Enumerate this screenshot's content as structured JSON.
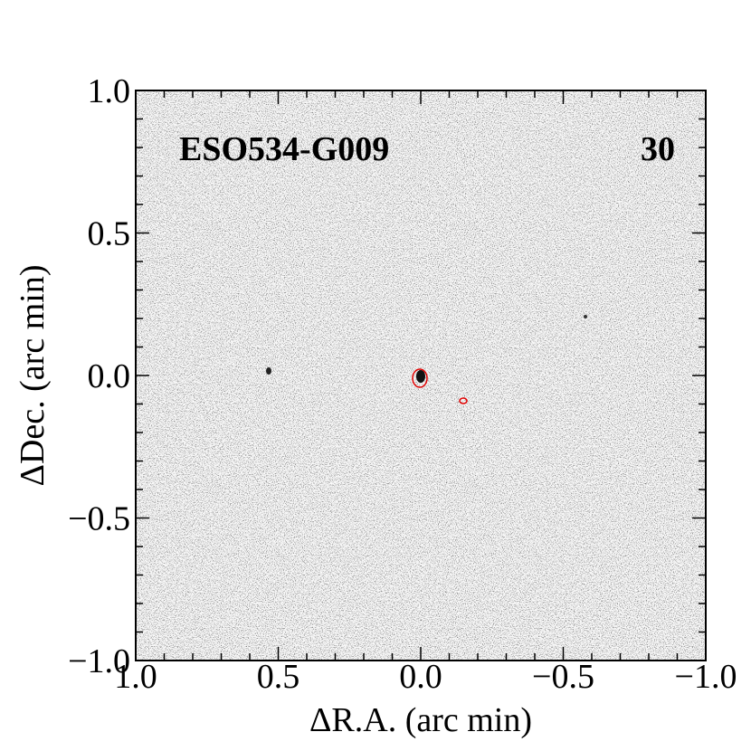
{
  "chart_data": {
    "type": "image",
    "title": "ESO534-G009",
    "subtitle": "30",
    "x_label": "ΔR.A. (arc min)",
    "y_label": "ΔDec. (arc min)",
    "xlim": [
      1.0,
      -1.0
    ],
    "ylim": [
      -1.0,
      1.0
    ],
    "xticks": [
      {
        "value": 1.0,
        "label": "1.0"
      },
      {
        "value": 0.5,
        "label": "0.5"
      },
      {
        "value": 0.0,
        "label": "0.0"
      },
      {
        "value": -0.5,
        "label": "−0.5"
      },
      {
        "value": -1.0,
        "label": "−1.0"
      }
    ],
    "yticks": [
      {
        "value": -1.0,
        "label": "−1.0"
      },
      {
        "value": -0.5,
        "label": "−0.5"
      },
      {
        "value": 0.0,
        "label": "0.0"
      },
      {
        "value": 0.5,
        "label": "0.5"
      },
      {
        "value": 1.0,
        "label": "1.0"
      }
    ],
    "xminorticks": [
      0.9,
      0.8,
      0.7,
      0.6,
      0.4,
      0.3,
      0.2,
      0.1,
      -0.1,
      -0.2,
      -0.3,
      -0.4,
      -0.6,
      -0.7,
      -0.8,
      -0.9
    ],
    "yminorticks": [
      0.9,
      0.8,
      0.7,
      0.6,
      0.4,
      0.3,
      0.2,
      0.1,
      -0.1,
      -0.2,
      -0.3,
      -0.4,
      -0.6,
      -0.7,
      -0.8,
      -0.9
    ]
  }
}
